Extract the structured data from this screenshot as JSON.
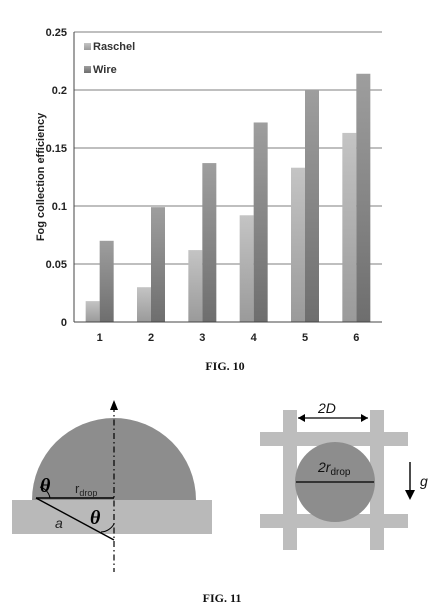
{
  "chart_data": {
    "type": "bar",
    "categories": [
      "1",
      "2",
      "3",
      "4",
      "5",
      "6"
    ],
    "series": [
      {
        "name": "Raschel",
        "values": [
          0.018,
          0.03,
          0.062,
          0.092,
          0.133,
          0.163
        ]
      },
      {
        "name": "Wire",
        "values": [
          0.07,
          0.099,
          0.137,
          0.172,
          0.2,
          0.214
        ]
      }
    ],
    "title": "",
    "xlabel": "",
    "ylabel": "Fog collection efficiency",
    "ylim": [
      0,
      0.25
    ],
    "yticks": [
      "0",
      "0.05",
      "0.1",
      "0.15",
      "0.2",
      "0.25"
    ],
    "grid": true,
    "legend_placement": "top-left",
    "colors": {
      "raschel": "#b8b8b8",
      "wire": "#8e8e8e"
    }
  },
  "fig10_caption": "FIG. 10",
  "fig11_caption": "FIG. 11",
  "diagram": {
    "theta1": "θ",
    "theta2": "θ",
    "r_drop_main": "r",
    "r_drop_sub": "drop",
    "a_label": "a",
    "spacing_label": "2D",
    "diameter_main": "2r",
    "diameter_sub": "drop",
    "gravity_label": "g",
    "colors": {
      "substrate": "#b9b9b9",
      "drop": "#8d8d8d",
      "mesh": "#bdbdbd"
    }
  }
}
